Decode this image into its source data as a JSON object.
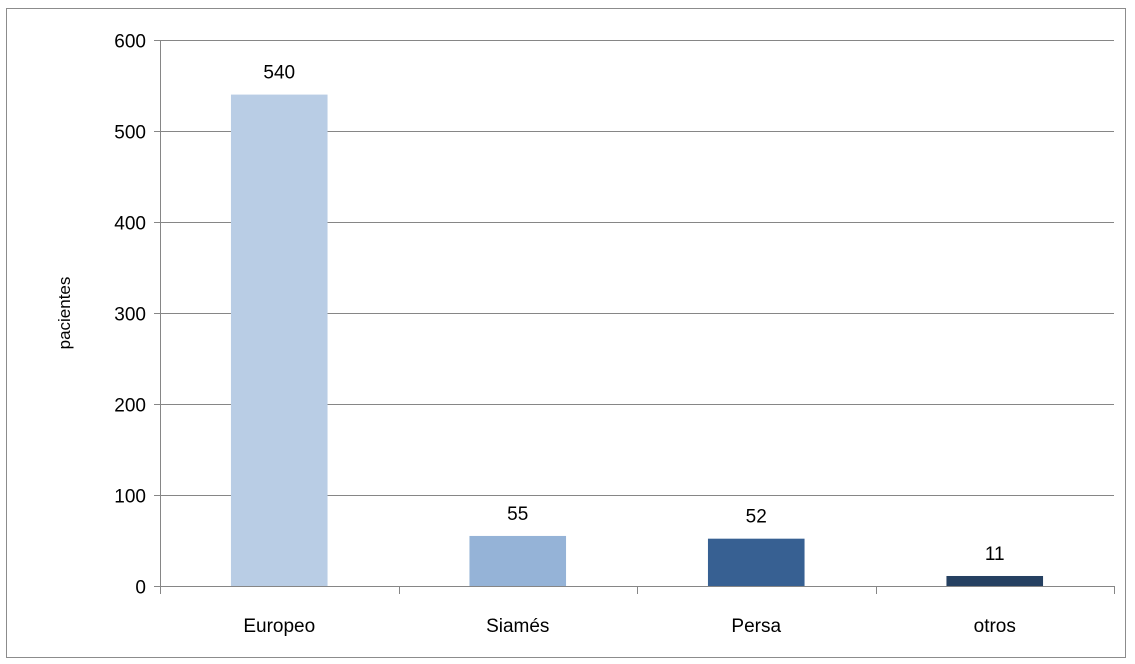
{
  "chart_data": {
    "type": "bar",
    "title": "",
    "xlabel": "",
    "ylabel": "pacientes",
    "categories": [
      "Europeo",
      "Siamés",
      "Persa",
      "otros"
    ],
    "values": [
      540,
      55,
      52,
      11
    ],
    "data_labels": [
      "540",
      "55",
      "52",
      "11"
    ],
    "bar_colors": [
      "#b9cde5",
      "#95b3d7",
      "#376092",
      "#254061"
    ],
    "ylim": [
      0,
      600
    ],
    "yticks": [
      0,
      100,
      200,
      300,
      400,
      500,
      600
    ],
    "grid": true,
    "legend": "none"
  }
}
